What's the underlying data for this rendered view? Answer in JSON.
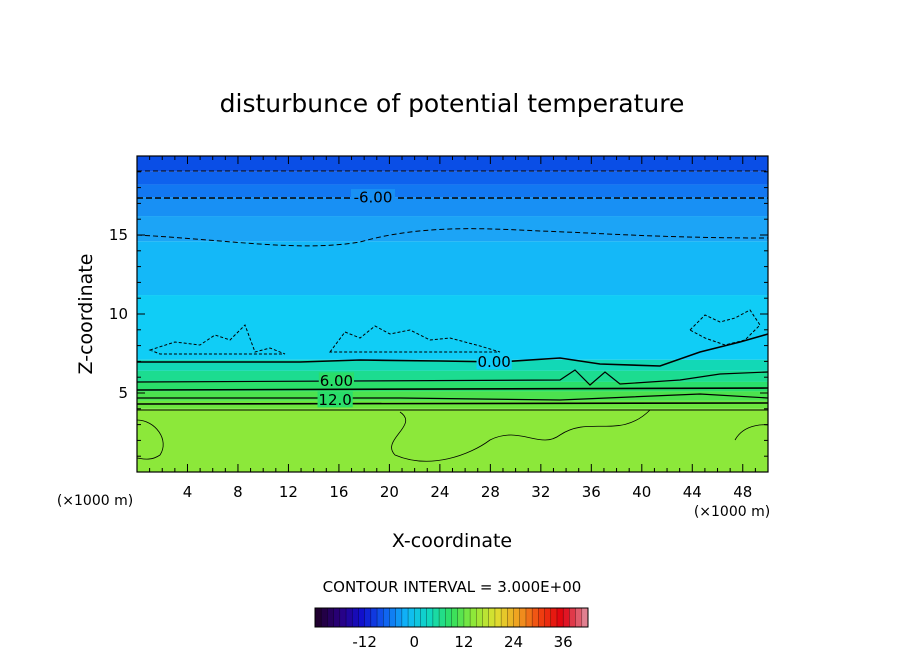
{
  "chart_data": {
    "type": "contour",
    "title": "disturbunce of potential temperature",
    "xlabel": "X-coordinate",
    "ylabel": "Z-coordinate",
    "x_unit_left": "(×1000 m)",
    "x_unit_right": "(×1000 m)",
    "xlim": [
      0,
      50
    ],
    "ylim": [
      0,
      20
    ],
    "xticks": [
      4,
      8,
      12,
      16,
      20,
      24,
      28,
      32,
      36,
      40,
      44,
      48
    ],
    "xtick_labels": [
      "4",
      "8",
      "12",
      "16",
      "20",
      "24",
      "28",
      "32",
      "36",
      "40",
      "44",
      "48"
    ],
    "yticks": [
      5,
      10,
      15
    ],
    "ytick_labels": [
      "5",
      "10",
      "15"
    ],
    "contour_interval_text": "CONTOUR INTERVAL = 3.000E+00",
    "contour_labels": [
      {
        "text": "-6.00",
        "x": 18.7,
        "z": 17.4
      },
      {
        "text": "0.00",
        "x": 28.3,
        "z": 7.0
      },
      {
        "text": "6.00",
        "x": 15.8,
        "z": 5.8
      },
      {
        "text": "12.0",
        "x": 15.7,
        "z": 4.6
      }
    ],
    "bands": [
      {
        "z_top": 20.0,
        "z_bot": 19.0,
        "color": "#0a4ee6"
      },
      {
        "z_top": 19.0,
        "z_bot": 18.2,
        "color": "#0e62ee"
      },
      {
        "z_top": 18.2,
        "z_bot": 17.4,
        "color": "#1278f2"
      },
      {
        "z_top": 17.4,
        "z_bot": 16.2,
        "color": "#1890f4"
      },
      {
        "z_top": 16.2,
        "z_bot": 14.6,
        "color": "#1ca4f6"
      },
      {
        "z_top": 14.6,
        "z_bot": 11.2,
        "color": "#14b8f8"
      },
      {
        "z_top": 11.2,
        "z_bot": 7.1,
        "color": "#10cdf6"
      },
      {
        "z_top": 7.1,
        "z_bot": 6.4,
        "color": "#12d8b6"
      },
      {
        "z_top": 6.4,
        "z_bot": 5.7,
        "color": "#1cdc90"
      },
      {
        "z_top": 5.7,
        "z_bot": 5.1,
        "color": "#2ade6a"
      },
      {
        "z_top": 5.1,
        "z_bot": 4.5,
        "color": "#4ce24e"
      },
      {
        "z_top": 4.5,
        "z_bot": 4.0,
        "color": "#6ce63e"
      },
      {
        "z_top": 4.0,
        "z_bot": 0.0,
        "color": "#8ce83a"
      }
    ],
    "colorbar": {
      "min": -24,
      "max": 42,
      "ticks": [
        -12,
        0,
        12,
        24,
        36
      ],
      "tick_labels": [
        "-12",
        "0",
        "12",
        "24",
        "36"
      ],
      "stops": [
        "#200030",
        "#2a0080",
        "#1010d0",
        "#1060f0",
        "#10b8f8",
        "#10d8c0",
        "#30e060",
        "#90e838",
        "#e0e030",
        "#f0a020",
        "#f04010",
        "#e00010",
        "#e08090"
      ]
    }
  }
}
